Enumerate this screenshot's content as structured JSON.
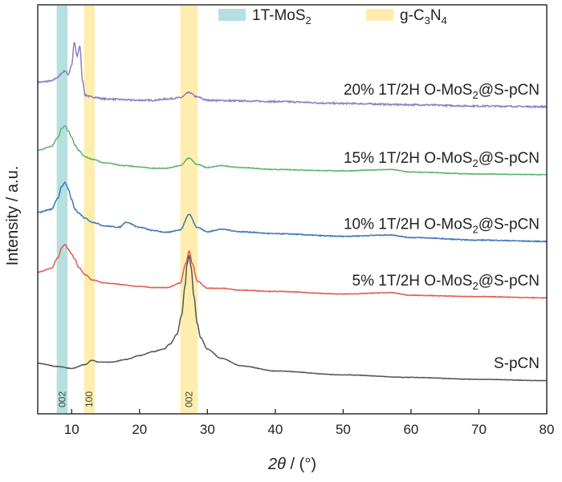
{
  "chart_data": {
    "type": "line",
    "title": "",
    "xlabel_theta": "2θ",
    "xlabel_unit": " / (°)",
    "ylabel": "Intensity / a.u.",
    "xlim": [
      5,
      80
    ],
    "xticks": [
      10,
      20,
      30,
      40,
      50,
      60,
      70,
      80
    ],
    "grid": false,
    "legend": [
      {
        "text": "1T-MoS",
        "sub": "2",
        "color": "#b6e0df"
      },
      {
        "text": "g-C",
        "sub": "3",
        "text2": "N",
        "sub2": "4",
        "color": "#fdeeb0"
      }
    ],
    "bands": [
      {
        "x0": 7.8,
        "x1": 9.4,
        "label": "002",
        "color": "#b6e0df"
      },
      {
        "x0": 11.8,
        "x1": 13.4,
        "label": "100",
        "color": "#fdeeb0"
      },
      {
        "x0": 26.0,
        "x1": 28.6,
        "label": "002",
        "color": "#fdeeb0"
      }
    ],
    "series": [
      {
        "label_pre": "20% 1T/2H O-MoS",
        "label_sub": "2",
        "label_post": "@S-pCN",
        "color": "#8b7fc0",
        "offset": 4.1,
        "noise": 0.012,
        "x": [
          5,
          7,
          8,
          8.5,
          9,
          9.5,
          10,
          10.4,
          10.8,
          11.2,
          11.6,
          12,
          13,
          15,
          20,
          22,
          24,
          26,
          27.3,
          28.5,
          30,
          35,
          40,
          50,
          60,
          70,
          80
        ],
        "y": [
          0.28,
          0.3,
          0.36,
          0.42,
          0.46,
          0.4,
          0.55,
          0.9,
          0.68,
          0.85,
          0.3,
          0.08,
          0.05,
          0.02,
          0.0,
          0.0,
          0.02,
          0.04,
          0.12,
          0.05,
          0.0,
          -0.01,
          -0.02,
          -0.05,
          -0.07,
          -0.09,
          -0.1
        ]
      },
      {
        "label_pre": "15% 1T/2H O-MoS",
        "label_sub": "2",
        "label_post": "@S-pCN",
        "color": "#5cb46c",
        "offset": 3.1,
        "noise": 0.006,
        "x": [
          5,
          7,
          8,
          8.5,
          9,
          9.5,
          10,
          10.5,
          11,
          12,
          13,
          15,
          18,
          20,
          22,
          24,
          26,
          27.3,
          28.5,
          30,
          32,
          35,
          40,
          50,
          57,
          60,
          70,
          80
        ],
        "y": [
          0.22,
          0.28,
          0.42,
          0.56,
          0.6,
          0.52,
          0.42,
          0.3,
          0.22,
          0.12,
          0.08,
          0.02,
          -0.02,
          -0.04,
          -0.06,
          -0.06,
          -0.02,
          0.1,
          0.0,
          -0.05,
          -0.02,
          -0.05,
          -0.08,
          -0.1,
          -0.08,
          -0.12,
          -0.15,
          -0.16
        ]
      },
      {
        "label_pre": "10% 1T/2H O-MoS",
        "label_sub": "2",
        "label_post": "@S-pCN",
        "color": "#3b78b8",
        "offset": 2.1,
        "noise": 0.007,
        "x": [
          5,
          7,
          8,
          8.5,
          9,
          9.5,
          10,
          10.5,
          11,
          12,
          13,
          15,
          17,
          18,
          20,
          22,
          24,
          26,
          27.3,
          28.5,
          30,
          32,
          35,
          40,
          50,
          57,
          60,
          70,
          80
        ],
        "y": [
          0.25,
          0.3,
          0.48,
          0.65,
          0.72,
          0.62,
          0.45,
          0.3,
          0.24,
          0.16,
          0.1,
          0.04,
          0.02,
          0.1,
          0.02,
          -0.03,
          -0.06,
          -0.02,
          0.22,
          0.02,
          -0.05,
          -0.01,
          -0.05,
          -0.08,
          -0.12,
          -0.1,
          -0.14,
          -0.18,
          -0.2
        ]
      },
      {
        "label_pre": "5% 1T/2H O-MoS",
        "label_sub": "2",
        "label_post": "@S-pCN",
        "color": "#e2594c",
        "offset": 1.2,
        "noise": 0.005,
        "x": [
          5,
          7,
          8,
          8.5,
          9,
          9.5,
          10,
          10.5,
          11,
          12,
          13,
          15,
          20,
          22,
          24,
          26,
          26.8,
          27.3,
          27.8,
          28.5,
          30,
          32,
          35,
          40,
          50,
          57,
          60,
          70,
          80
        ],
        "y": [
          0.22,
          0.28,
          0.45,
          0.6,
          0.65,
          0.58,
          0.5,
          0.42,
          0.3,
          0.18,
          0.1,
          0.05,
          0.0,
          -0.02,
          -0.02,
          0.05,
          0.35,
          0.55,
          0.35,
          0.08,
          -0.03,
          -0.03,
          -0.06,
          -0.08,
          -0.12,
          -0.1,
          -0.14,
          -0.16,
          -0.18
        ]
      },
      {
        "label_pre": "S-pCN",
        "label_sub": "",
        "label_post": "",
        "color": "#555555",
        "offset": 0.0,
        "noise": 0.004,
        "x": [
          5,
          8,
          10,
          12,
          13,
          14,
          16,
          18,
          20,
          22,
          23.5,
          24.5,
          25.5,
          26.2,
          26.7,
          27.0,
          27.3,
          27.6,
          28.0,
          28.5,
          29,
          30,
          32,
          35,
          40,
          50,
          60,
          70,
          80
        ],
        "y": [
          0.0,
          -0.05,
          -0.08,
          -0.02,
          0.05,
          0.02,
          0.02,
          0.06,
          0.12,
          0.18,
          0.22,
          0.3,
          0.45,
          0.75,
          1.2,
          1.55,
          1.68,
          1.5,
          1.05,
          0.62,
          0.4,
          0.22,
          0.08,
          -0.04,
          -0.12,
          -0.18,
          -0.22,
          -0.25,
          -0.27
        ]
      }
    ]
  }
}
